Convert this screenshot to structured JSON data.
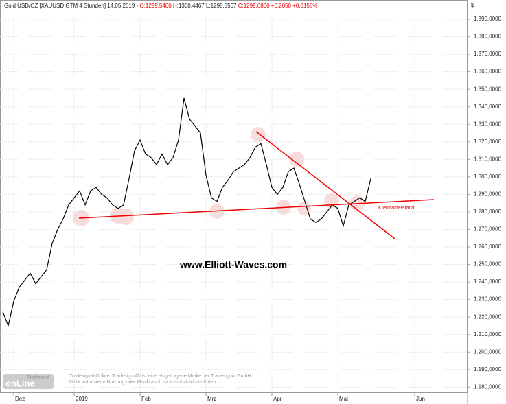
{
  "chart_data": {
    "type": "line",
    "title": "Gold USD/OZ [XAUUSD GTM  4 Stunden] 14.05.2019 -",
    "ohlc_text": {
      "open": "O:1299,5400",
      "high": "H:1300,4467",
      "low": "L:1298,8567",
      "close": "C:1299,6800",
      "change": "+0,2050",
      "change_pct": "+0,0158%"
    },
    "currency": "$",
    "watermark": "www.Elliott-Waves.com",
    "annotation": "Kreuzwiderstand",
    "footer": [
      "Tradesignal Online. Tradesignal® ist eine eingetragene Marke der Tradesignal GmbH.",
      "Nicht autorisierte Nutzung oder Missbrauch ist ausdrücklich verboten."
    ],
    "logo": {
      "brand": "Tradesignal",
      "name": "onLine"
    },
    "color": "#000000",
    "grid": true,
    "categories": [
      null,
      null,
      "Dez",
      null,
      null,
      null,
      null,
      null,
      null,
      null,
      null,
      null,
      null,
      "2019",
      null,
      null,
      null,
      null,
      null,
      null,
      null,
      null,
      null,
      null,
      null,
      "Feb",
      null,
      null,
      null,
      null,
      null,
      null,
      null,
      null,
      null,
      null,
      null,
      "Mrz",
      null,
      null,
      null,
      null,
      null,
      null,
      null,
      null,
      null,
      null,
      null,
      "Apr",
      null,
      null,
      null,
      null,
      null,
      null,
      null,
      null,
      null,
      null,
      null,
      "Mai",
      null,
      null,
      null,
      null,
      null,
      null,
      null,
      null,
      null,
      null,
      null,
      null,
      null,
      "Jun"
    ],
    "values": [
      1223,
      1215,
      1229,
      1237,
      1241,
      1245,
      1239,
      1243,
      1247,
      1262,
      1270,
      1276,
      1284,
      1288,
      1292,
      1284,
      1292,
      1294,
      1290,
      1288,
      1284,
      1282,
      1284,
      1299,
      1315,
      1321,
      1313,
      1311,
      1307,
      1313,
      1307,
      1311,
      1321,
      1345,
      1333,
      1329,
      1325,
      1301,
      1288,
      1286,
      1294,
      1298,
      1303,
      1305,
      1307,
      1311,
      1317,
      1319,
      1307,
      1294,
      1290,
      1294,
      1303,
      1305,
      1296,
      1286,
      1276,
      1274,
      1276,
      1280,
      1284,
      1282,
      1272,
      1284,
      1286,
      1288,
      1286,
      1299,
      null,
      null,
      null,
      null,
      null,
      null,
      null,
      null
    ],
    "ylim": [
      1177,
      1399
    ],
    "yticks": [
      {
        "value": 1180,
        "label": "1.180,0000"
      },
      {
        "value": 1190,
        "label": "1.190,0000"
      },
      {
        "value": 1200,
        "label": "1.200,0000"
      },
      {
        "value": 1210,
        "label": "1.210,0000"
      },
      {
        "value": 1220,
        "label": "1.220,0000"
      },
      {
        "value": 1230,
        "label": "1.230,0000"
      },
      {
        "value": 1240,
        "label": "1.240,0000"
      },
      {
        "value": 1250,
        "label": "1.250,0000"
      },
      {
        "value": 1260,
        "label": "1.260,0000"
      },
      {
        "value": 1270,
        "label": "1.270,0000"
      },
      {
        "value": 1280,
        "label": "1.280,0000"
      },
      {
        "value": 1290,
        "label": "1.290,0000"
      },
      {
        "value": 1300,
        "label": "1.300,0000"
      },
      {
        "value": 1310,
        "label": "1.310,0000"
      },
      {
        "value": 1320,
        "label": "1.320,0000"
      },
      {
        "value": 1330,
        "label": "1.330,0000"
      },
      {
        "value": 1340,
        "label": "1.340,0000"
      },
      {
        "value": 1350,
        "label": "1.350,0000"
      },
      {
        "value": 1360,
        "label": "1.360,0000"
      },
      {
        "value": 1370,
        "label": "1.370,0000"
      },
      {
        "value": 1380,
        "label": "1.380,0000"
      },
      {
        "value": 1390,
        "label": "1.390,0000"
      }
    ]
  }
}
